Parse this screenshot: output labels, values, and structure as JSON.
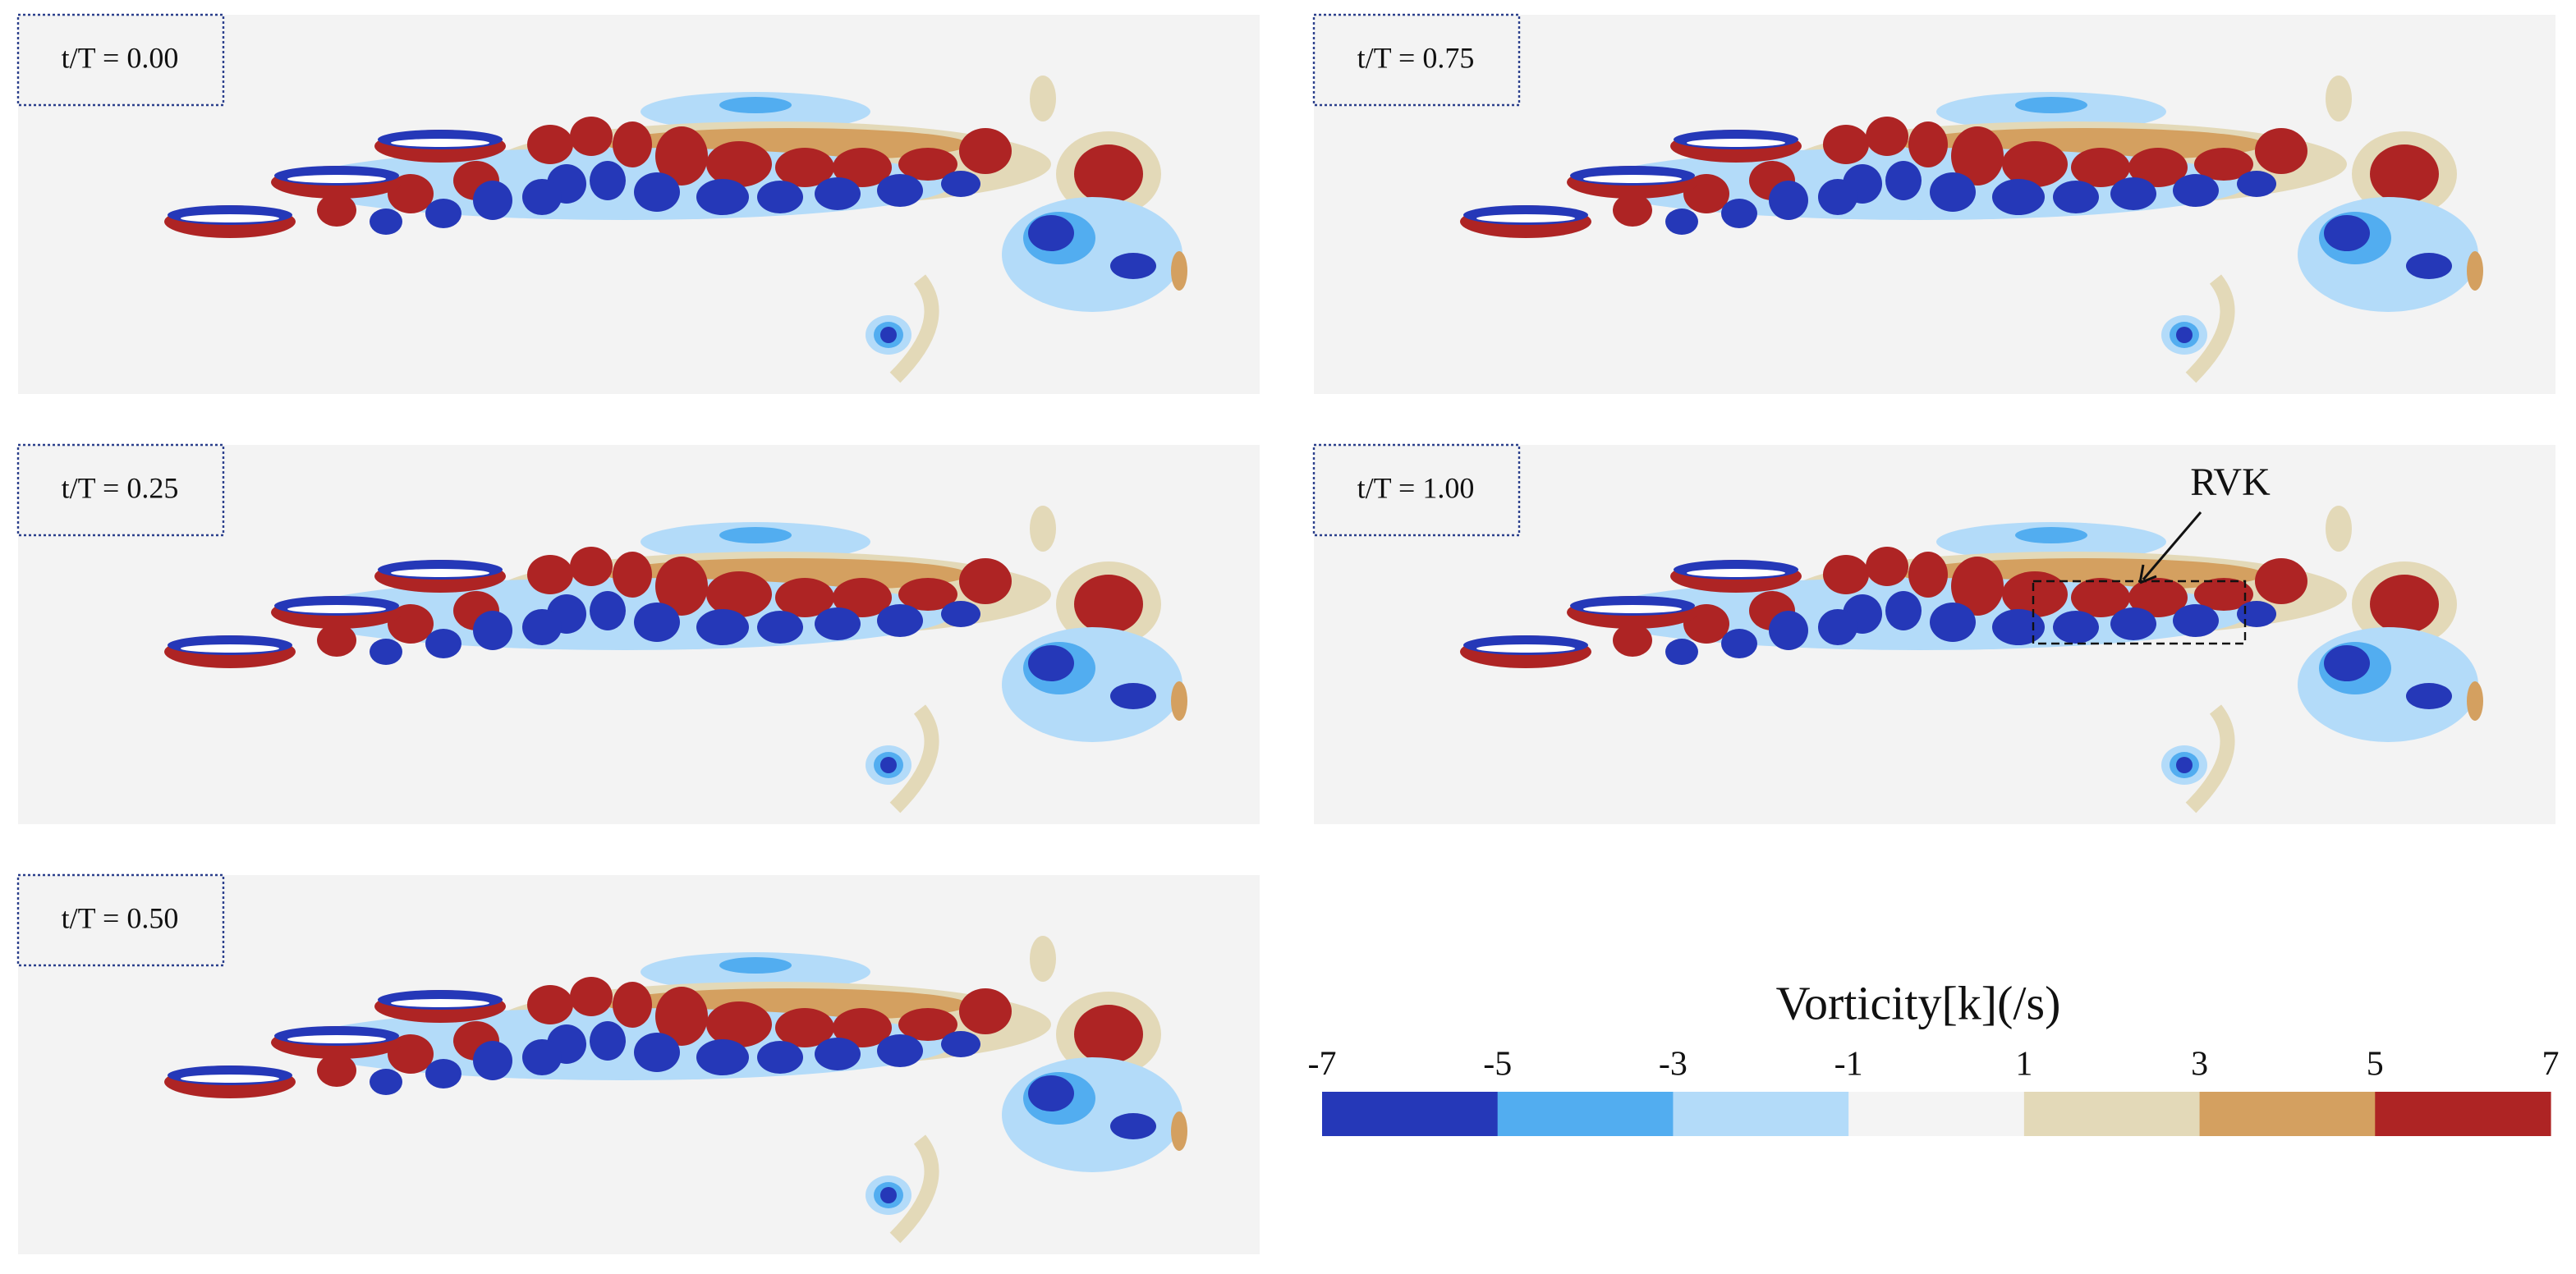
{
  "panels": [
    {
      "label": "t/T = 0.00"
    },
    {
      "label": "t/T = 0.75"
    },
    {
      "label": "t/T = 0.25"
    },
    {
      "label": "t/T = 1.00",
      "annotation": "RVK"
    },
    {
      "label": "t/T = 0.50"
    }
  ],
  "colorbar": {
    "title": "Vorticity[k](/s)",
    "range": [
      -7,
      7
    ],
    "ticks": [
      -7,
      -5,
      -3,
      -1,
      1,
      3,
      5,
      7
    ],
    "colors": [
      "#2538b8",
      "#52adf0",
      "#b3dbf9",
      "#f4f4f4",
      "#e3d9b8",
      "#d4a060",
      "#ae2424"
    ]
  }
}
